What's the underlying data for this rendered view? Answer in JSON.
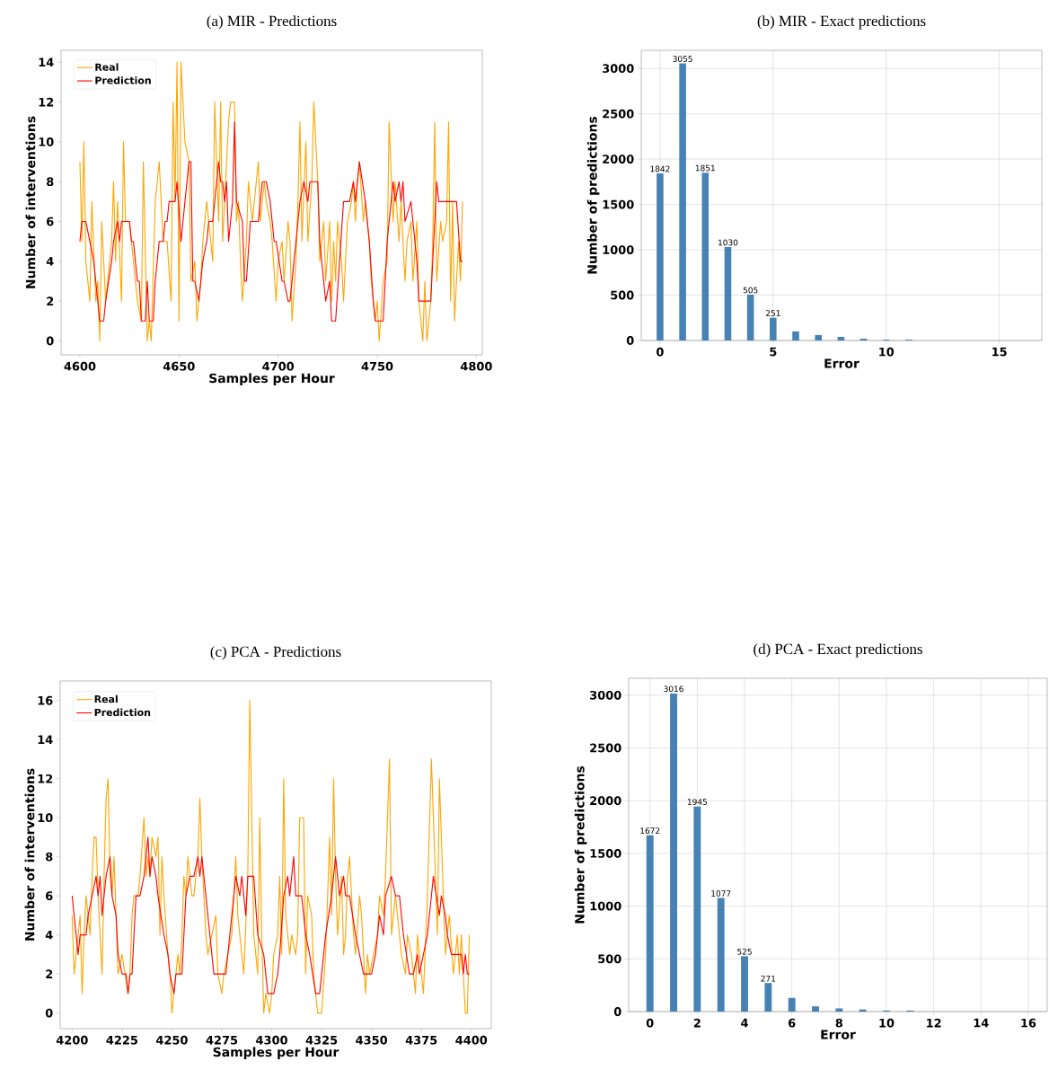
{
  "chart_data": [
    {
      "type": "line",
      "title": "(a) MIR - Predictions",
      "xlabel": "Samples per Hour",
      "ylabel": "Number of interventions",
      "xlim": [
        4590.5,
        4803
      ],
      "ylim": [
        -0.7,
        14.6
      ],
      "xticks": [
        4600,
        4650,
        4700,
        4750,
        4800
      ],
      "yticks": [
        0,
        2,
        4,
        6,
        8,
        10,
        12,
        14
      ],
      "legend": "top left",
      "series": [
        {
          "name": "Real",
          "color": "#ffa500",
          "x": [
            4600,
            4601,
            4602,
            4603,
            4605,
            4606,
            4608,
            4609,
            4610,
            4611,
            4613,
            4614,
            4616,
            4617,
            4618,
            4619,
            4621,
            4622,
            4623,
            4625,
            4626,
            4627,
            4629,
            4631,
            4632,
            4634,
            4635,
            4636,
            4638,
            4640,
            4642,
            4644,
            4646,
            4647,
            4648,
            4649,
            4650,
            4651,
            4652,
            4653,
            4655,
            4656,
            4658,
            4659,
            4661,
            4662,
            4664,
            4665,
            4667,
            4668,
            4670,
            4671,
            4672,
            4673,
            4675,
            4676,
            4678,
            4679,
            4680,
            4681,
            4682,
            4684,
            4685,
            4687,
            4688,
            4690,
            4691,
            4693,
            4694,
            4696,
            4697,
            4699,
            4700,
            4702,
            4703,
            4705,
            4706,
            4707,
            4709,
            4710,
            4711,
            4712,
            4714,
            4715,
            4717,
            4718,
            4720,
            4721,
            4723,
            4724,
            4726,
            4727,
            4728,
            4729,
            4730,
            4732,
            4733,
            4735,
            4737,
            4738,
            4739,
            4740,
            4741,
            4743,
            4744,
            4746,
            4747,
            4749,
            4750,
            4751,
            4753,
            4755,
            4756,
            4758,
            4759,
            4761,
            4762,
            4764,
            4765,
            4767,
            4768,
            4770,
            4771,
            4773,
            4774,
            4775,
            4777,
            4778,
            4779,
            4780,
            4782,
            4783,
            4785,
            4786,
            4787,
            4788,
            4789,
            4791,
            4792,
            4793
          ],
          "values": [
            9,
            5,
            10,
            4,
            2,
            7,
            2,
            3,
            0,
            6,
            2,
            3,
            5,
            8,
            4,
            7,
            2,
            10,
            6,
            6,
            5,
            4,
            2,
            1,
            9,
            0,
            1,
            0,
            7,
            9,
            5,
            5,
            2,
            12,
            7,
            14,
            1,
            14,
            12,
            10,
            9,
            3,
            4,
            1,
            3,
            5,
            7,
            6,
            4,
            12,
            6,
            12,
            5,
            7,
            11,
            12,
            12,
            6,
            7,
            4,
            2,
            5,
            8,
            6,
            7,
            9,
            6,
            8,
            7,
            6,
            5,
            2,
            4,
            5,
            3,
            6,
            5,
            1,
            4,
            7,
            11,
            5,
            10,
            5,
            8,
            12,
            8,
            4,
            6,
            3,
            6,
            2,
            5,
            3,
            6,
            4,
            2,
            6,
            7,
            8,
            6,
            8,
            9,
            6,
            7,
            5,
            3,
            1,
            2,
            0,
            3,
            4,
            11,
            6,
            8,
            5,
            7,
            3,
            5,
            6,
            3,
            6,
            2,
            0,
            3,
            0,
            2,
            5,
            11,
            3,
            6,
            5,
            6,
            11,
            2,
            7,
            1,
            5,
            3,
            7
          ]
        },
        {
          "name": "Prediction",
          "color": "#ff0000",
          "x": [
            4600,
            4601,
            4603,
            4607,
            4608,
            4610,
            4612,
            4613,
            4616,
            4617,
            4619,
            4620,
            4621,
            4625,
            4626,
            4627,
            4629,
            4630,
            4631,
            4633,
            4634,
            4635,
            4637,
            4638,
            4640,
            4642,
            4643,
            4644,
            4645,
            4648,
            4649,
            4651,
            4653,
            4655,
            4656,
            4657,
            4658,
            4660,
            4662,
            4664,
            4665,
            4667,
            4670,
            4671,
            4672,
            4673,
            4674,
            4675,
            4677,
            4678,
            4679,
            4682,
            4683,
            4684,
            4686,
            4690,
            4692,
            4694,
            4696,
            4698,
            4699,
            4702,
            4703,
            4705,
            4706,
            4708,
            4711,
            4713,
            4715,
            4716,
            4720,
            4721,
            4724,
            4726,
            4727,
            4729,
            4731,
            4733,
            4736,
            4738,
            4739,
            4741,
            4744,
            4746,
            4748,
            4749,
            4753,
            4755,
            4758,
            4759,
            4761,
            4762,
            4763,
            4764,
            4767,
            4770,
            4771,
            4777,
            4780,
            4781,
            4790,
            4792,
            4793
          ],
          "values": [
            5,
            6,
            6,
            4,
            3,
            1,
            1,
            2,
            4,
            5,
            6,
            5,
            6,
            6,
            5,
            5,
            3,
            3,
            1,
            1,
            3,
            1,
            1,
            3,
            5,
            5,
            6,
            6,
            7,
            7,
            8,
            5,
            7,
            9,
            9,
            3,
            3,
            2,
            4,
            5,
            6,
            6,
            9,
            8,
            8,
            7,
            8,
            5,
            7,
            11,
            7,
            6,
            3,
            3,
            6,
            6,
            8,
            8,
            7,
            5,
            5,
            3,
            3,
            2,
            2,
            4,
            7,
            8,
            7,
            8,
            8,
            5,
            2,
            3,
            1,
            1,
            4,
            7,
            7,
            8,
            7,
            9,
            7,
            5,
            2,
            1,
            1,
            5,
            8,
            7,
            8,
            7,
            8,
            6,
            7,
            4,
            2,
            2,
            8,
            7,
            7,
            4,
            4
          ]
        }
      ]
    },
    {
      "type": "bar",
      "title": "(b) MIR - Exact predictions",
      "xlabel": "Error",
      "ylabel": "Number of predictions",
      "xlim": [
        -0.83,
        16.88
      ],
      "ylim": [
        0,
        3200
      ],
      "xticks": [
        0,
        5,
        10,
        15
      ],
      "yticks": [
        0,
        500,
        1000,
        1500,
        2000,
        2500,
        3000
      ],
      "grid": true,
      "color": "#4682b4",
      "x": [
        0,
        1,
        2,
        3,
        4,
        5,
        6,
        7,
        8,
        9,
        10,
        11
      ],
      "values": [
        1842,
        3055,
        1851,
        1030,
        505,
        251,
        100,
        60,
        40,
        20,
        10,
        10
      ],
      "value_labels": [
        "1842",
        "3055",
        "1851",
        "1030",
        "505",
        "251",
        null,
        null,
        null,
        null,
        null,
        null
      ]
    },
    {
      "type": "line",
      "title": "(c) PCA - Predictions",
      "xlabel": "Samples per Hour",
      "ylabel": "Number of interventions",
      "xlim": [
        4194,
        4410
      ],
      "ylim": [
        -0.8,
        17
      ],
      "xticks": [
        4200,
        4225,
        4250,
        4275,
        4300,
        4325,
        4350,
        4375,
        4400
      ],
      "yticks": [
        0,
        2,
        4,
        6,
        8,
        10,
        12,
        14,
        16
      ],
      "legend": "top left",
      "series": [
        {
          "name": "Real",
          "color": "#ffa500",
          "x": [
            4200,
            4201,
            4203,
            4204,
            4205,
            4206,
            4207,
            4209,
            4210,
            4211,
            4212,
            4213,
            4215,
            4216,
            4217,
            4218,
            4219,
            4220,
            4221,
            4222,
            4223,
            4225,
            4228,
            4229,
            4230,
            4231,
            4233,
            4234,
            4236,
            4237,
            4238,
            4239,
            4240,
            4242,
            4243,
            4244,
            4245,
            4246,
            4248,
            4249,
            4250,
            4252,
            4253,
            4254,
            4255,
            4256,
            4257,
            4258,
            4260,
            4261,
            4263,
            4264,
            4265,
            4267,
            4268,
            4270,
            4272,
            4273,
            4275,
            4276,
            4278,
            4280,
            4282,
            4283,
            4285,
            4286,
            4288,
            4289,
            4291,
            4293,
            4294,
            4295,
            4296,
            4297,
            4299,
            4300,
            4301,
            4303,
            4304,
            4305,
            4306,
            4307,
            4309,
            4310,
            4312,
            4313,
            4314,
            4316,
            4317,
            4318,
            4320,
            4321,
            4323,
            4325,
            4327,
            4328,
            4329,
            4330,
            4331,
            4332,
            4333,
            4335,
            4336,
            4337,
            4338,
            4339,
            4341,
            4342,
            4344,
            4345,
            4347,
            4348,
            4349,
            4351,
            4353,
            4354,
            4356,
            4357,
            4359,
            4360,
            4362,
            4363,
            4365,
            4367,
            4368,
            4370,
            4372,
            4373,
            4375,
            4376,
            4378,
            4380,
            4382,
            4383,
            4384,
            4386,
            4387,
            4389,
            4391,
            4393,
            4394,
            4395,
            4397,
            4398,
            4399
          ],
          "values": [
            5,
            2,
            4,
            5,
            1,
            4,
            6,
            4,
            7,
            9,
            9,
            6,
            2,
            7,
            11,
            12,
            7,
            6,
            8,
            5,
            2,
            3,
            1,
            2,
            5,
            6,
            6,
            7,
            10,
            7,
            8,
            7,
            9,
            8,
            9,
            4,
            8,
            6,
            3,
            2,
            0,
            2,
            3,
            2,
            4,
            7,
            6,
            8,
            6,
            6,
            8,
            11,
            8,
            4,
            3,
            4,
            5,
            2,
            1,
            2,
            3,
            4,
            8,
            5,
            3,
            2,
            7,
            16,
            4,
            2,
            10,
            4,
            0,
            1,
            0,
            1,
            3,
            4,
            7,
            3,
            12,
            5,
            3,
            4,
            3,
            4,
            10,
            10,
            2,
            6,
            5,
            2,
            0,
            0,
            3,
            6,
            9,
            5,
            12,
            7,
            4,
            7,
            3,
            4,
            7,
            8,
            4,
            3,
            6,
            5,
            1,
            3,
            2,
            3,
            4,
            6,
            5,
            7,
            13,
            4,
            6,
            5,
            3,
            2,
            4,
            3,
            1,
            4,
            2,
            1,
            6,
            13,
            7,
            4,
            12,
            6,
            3,
            5,
            2,
            4,
            2,
            4,
            0,
            0,
            4
          ]
        },
        {
          "name": "Prediction",
          "color": "#ff0000",
          "x": [
            4200,
            4203,
            4204,
            4207,
            4208,
            4210,
            4212,
            4213,
            4214,
            4215,
            4217,
            4219,
            4220,
            4222,
            4223,
            4225,
            4227,
            4228,
            4229,
            4230,
            4232,
            4234,
            4236,
            4238,
            4239,
            4240,
            4242,
            4243,
            4246,
            4248,
            4249,
            4251,
            4252,
            4255,
            4257,
            4259,
            4261,
            4263,
            4264,
            4265,
            4266,
            4268,
            4271,
            4277,
            4281,
            4282,
            4284,
            4285,
            4287,
            4288,
            4291,
            4293,
            4296,
            4298,
            4301,
            4303,
            4304,
            4306,
            4308,
            4309,
            4311,
            4312,
            4315,
            4317,
            4319,
            4322,
            4324,
            4327,
            4330,
            4332,
            4334,
            4336,
            4337,
            4339,
            4342,
            4344,
            4346,
            4350,
            4352,
            4354,
            4356,
            4357,
            4360,
            4362,
            4364,
            4366,
            4369,
            4371,
            4373,
            4374,
            4378,
            4381,
            4384,
            4385,
            4387,
            4388,
            4390,
            4395,
            4396,
            4397,
            4398,
            4399
          ],
          "values": [
            6,
            3,
            4,
            4,
            5,
            6,
            7,
            6,
            7,
            5,
            7,
            8,
            6,
            5,
            3,
            2,
            2,
            1,
            2,
            2,
            6,
            6,
            7,
            9,
            7,
            8,
            7,
            6,
            4,
            3,
            2,
            1,
            2,
            2,
            6,
            7,
            7,
            8,
            7,
            8,
            7,
            5,
            2,
            2,
            6,
            7,
            6,
            7,
            5,
            7,
            7,
            4,
            3,
            1,
            1,
            2,
            3,
            6,
            7,
            6,
            8,
            6,
            6,
            4,
            3,
            1,
            1,
            4,
            6,
            8,
            6,
            7,
            6,
            6,
            4,
            3,
            2,
            2,
            3,
            5,
            4,
            6,
            7,
            6,
            6,
            4,
            2,
            2,
            3,
            2,
            4,
            7,
            5,
            6,
            5,
            4,
            3,
            3,
            2,
            3,
            2,
            2
          ]
        }
      ]
    },
    {
      "type": "bar",
      "title": "(d) PCA - Exact predictions",
      "xlabel": "Error",
      "ylabel": "Number of predictions",
      "xlim": [
        -0.9,
        16.8
      ],
      "ylim": [
        0,
        3160
      ],
      "xticks": [
        0,
        2,
        4,
        6,
        8,
        10,
        12,
        14,
        16
      ],
      "yticks": [
        0,
        500,
        1000,
        1500,
        2000,
        2500,
        3000
      ],
      "grid": true,
      "color": "#4682b4",
      "x": [
        0,
        1,
        2,
        3,
        4,
        5,
        6,
        7,
        8,
        9,
        10,
        11
      ],
      "values": [
        1672,
        3016,
        1945,
        1077,
        525,
        271,
        130,
        50,
        30,
        20,
        10,
        10
      ],
      "value_labels": [
        "1672",
        "3016",
        "1945",
        "1077",
        "525",
        "271",
        null,
        null,
        null,
        null,
        null,
        null
      ]
    }
  ]
}
